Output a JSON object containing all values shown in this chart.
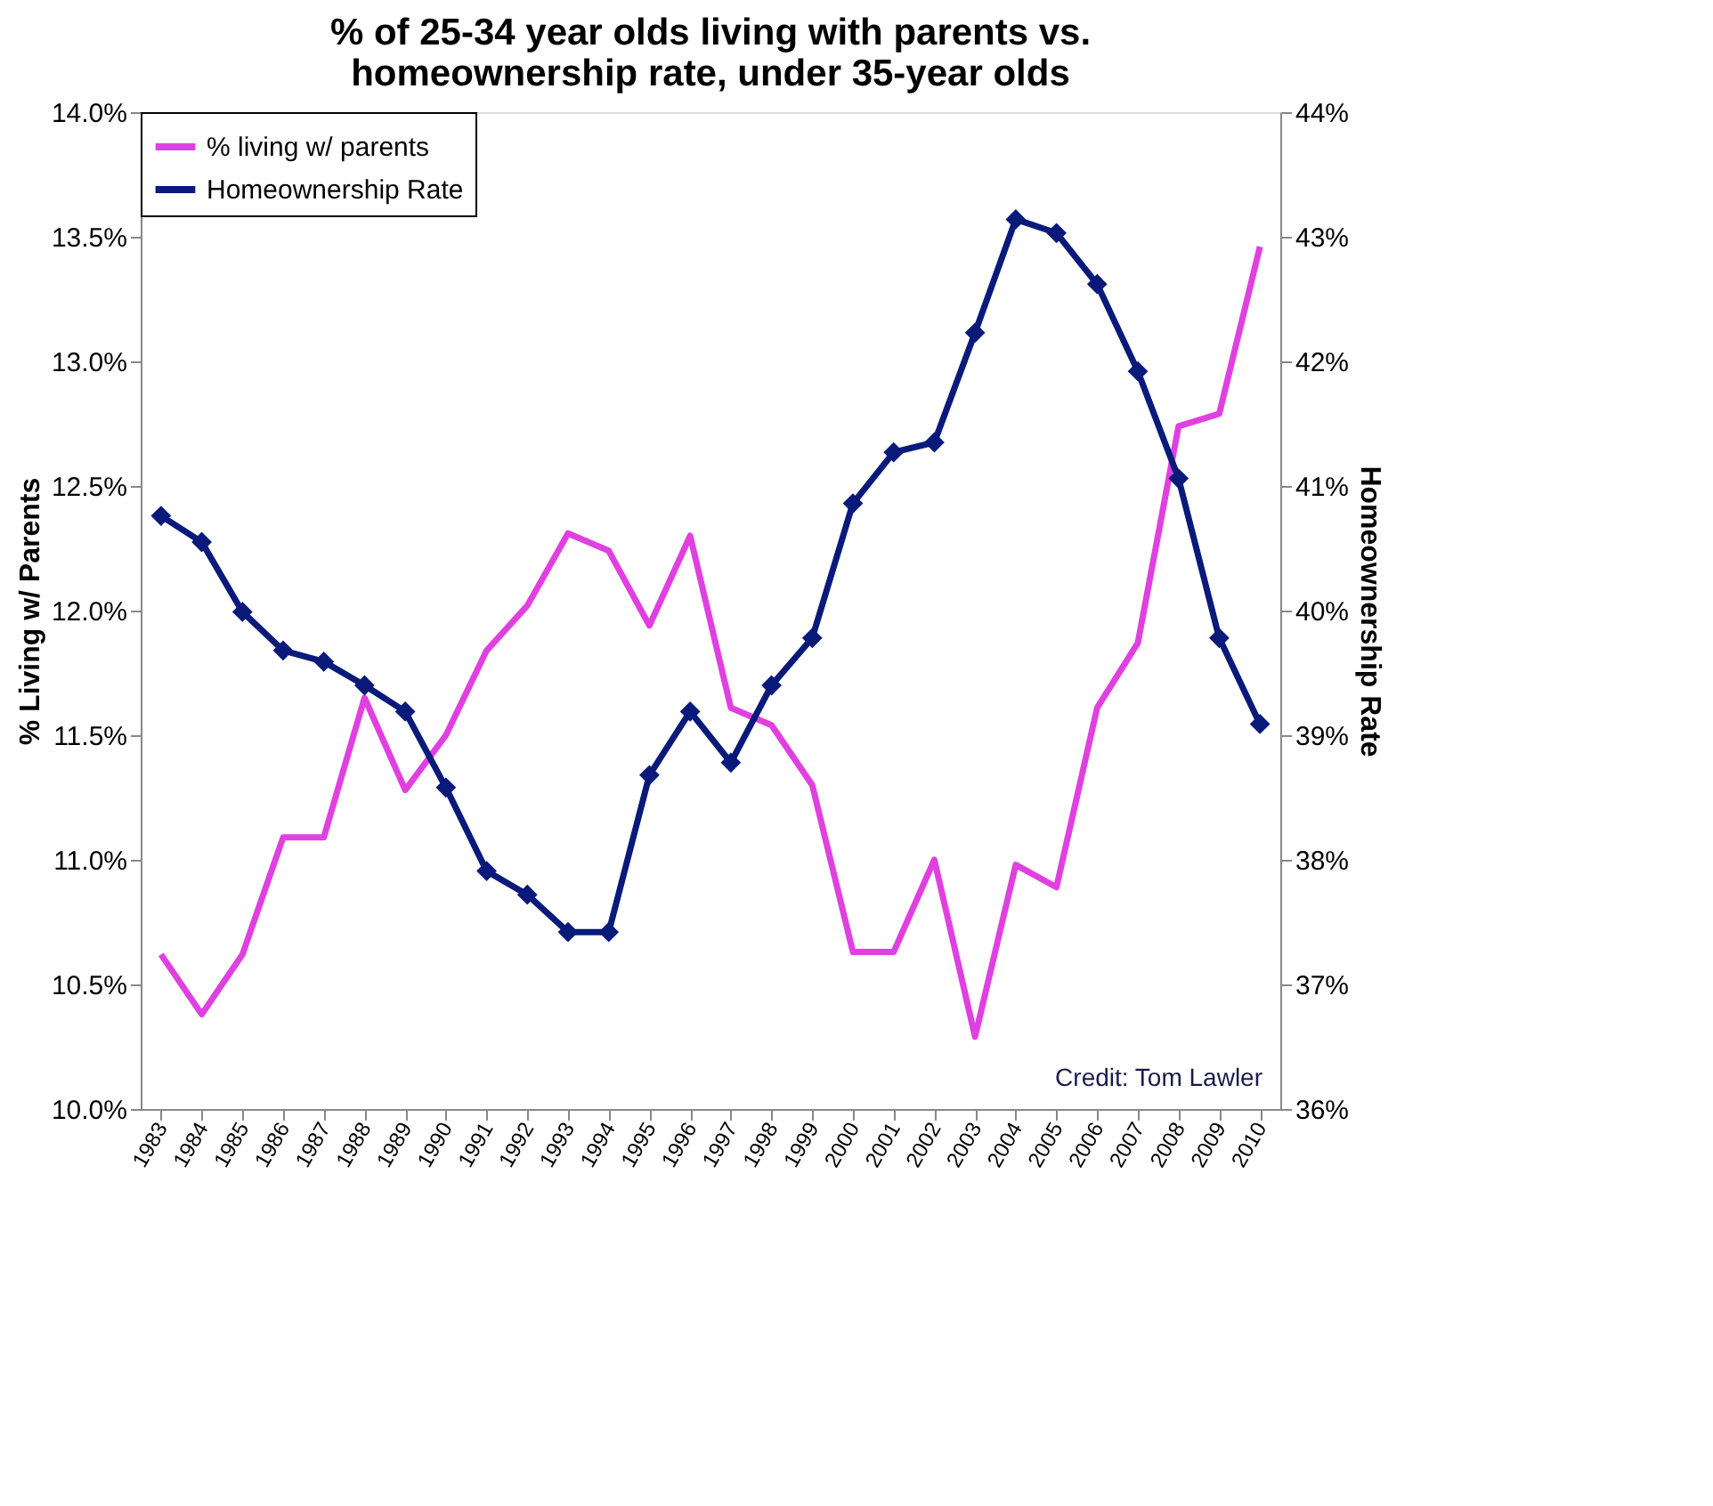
{
  "chart_data": {
    "type": "line",
    "title": "% of 25-34 year olds living with parents vs. homeownership rate, under 35-year olds",
    "ylabel": "%  Living w/ Parents",
    "y2label": "Homeownership Rate",
    "categories": [
      "1983",
      "1984",
      "1985",
      "1986",
      "1987",
      "1988",
      "1989",
      "1990",
      "1991",
      "1992",
      "1993",
      "1994",
      "1995",
      "1996",
      "1997",
      "1998",
      "1999",
      "2000",
      "2001",
      "2002",
      "2003",
      "2004",
      "2005",
      "2006",
      "2007",
      "2008",
      "2009",
      "2010"
    ],
    "series": [
      {
        "name": "% living w/ parents",
        "color": "#e040e0",
        "marker": "none",
        "values": [
          10.62,
          10.38,
          10.62,
          11.09,
          11.09,
          11.65,
          11.28,
          11.5,
          11.84,
          12.02,
          12.31,
          12.24,
          11.94,
          12.3,
          11.61,
          11.54,
          11.3,
          10.63,
          10.63,
          11.0,
          10.29,
          10.98,
          10.89,
          11.61,
          11.87,
          12.74,
          12.79,
          13.46
        ]
      },
      {
        "name": "Homeownership Rate",
        "color": "#0a1a7a",
        "marker": "diamond",
        "axis": "y2",
        "values": [
          40.76,
          40.55,
          39.99,
          39.68,
          39.59,
          39.4,
          39.19,
          38.58,
          37.91,
          37.72,
          37.42,
          37.42,
          38.68,
          39.19,
          38.78,
          39.4,
          39.78,
          40.86,
          41.27,
          41.35,
          42.23,
          43.14,
          43.03,
          42.62,
          41.92,
          41.06,
          39.78,
          39.09
        ]
      }
    ],
    "ylim": [
      10.0,
      14.0
    ],
    "yticks": [
      {
        "value": 10.0,
        "label": "10.0%"
      },
      {
        "value": 10.5,
        "label": "10.5%"
      },
      {
        "value": 11.0,
        "label": "11.0%"
      },
      {
        "value": 11.5,
        "label": "11.5%"
      },
      {
        "value": 12.0,
        "label": "12.0%"
      },
      {
        "value": 12.5,
        "label": "12.5%"
      },
      {
        "value": 13.0,
        "label": "13.0%"
      },
      {
        "value": 13.5,
        "label": "13.5%"
      },
      {
        "value": 14.0,
        "label": "14.0%"
      }
    ],
    "y2lim": [
      36,
      44
    ],
    "y2ticks": [
      {
        "value": 36,
        "label": "36%"
      },
      {
        "value": 37,
        "label": "37%"
      },
      {
        "value": 38,
        "label": "38%"
      },
      {
        "value": 39,
        "label": "39%"
      },
      {
        "value": 40,
        "label": "40%"
      },
      {
        "value": 41,
        "label": "41%"
      },
      {
        "value": 42,
        "label": "42%"
      },
      {
        "value": 43,
        "label": "43%"
      },
      {
        "value": 44,
        "label": "44%"
      }
    ],
    "annotations": [
      "Credit: Tom Lawler"
    ],
    "legend": "top left",
    "grid": false,
    "line_style": "solid"
  }
}
